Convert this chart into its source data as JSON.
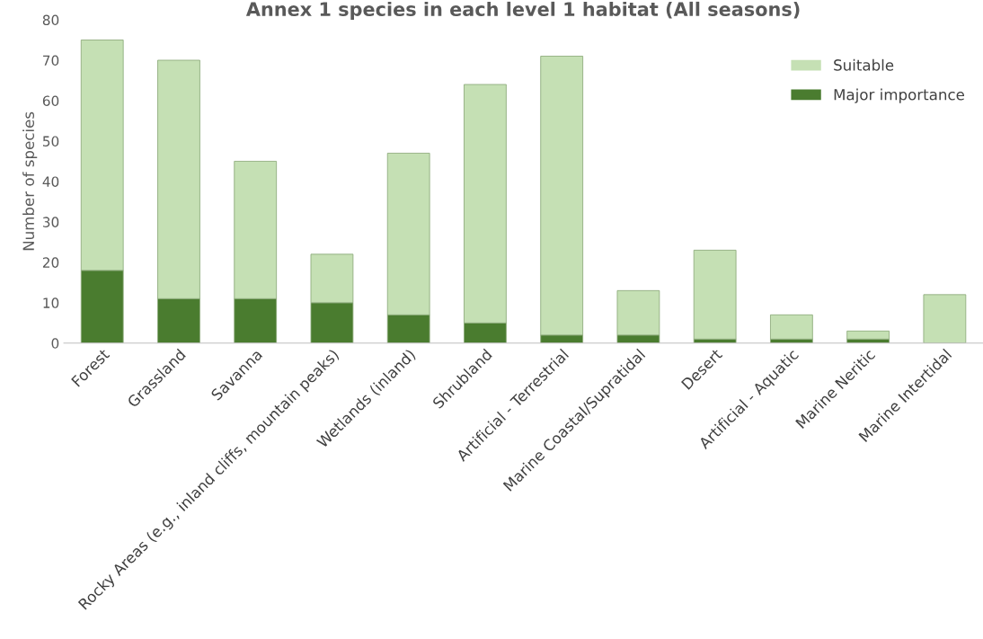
{
  "chart_data": {
    "type": "bar",
    "title": "Annex 1 species in each level 1 habitat (All seasons)",
    "ylabel": "Number of species",
    "categories": [
      "Forest",
      "Grassland",
      "Savanna",
      "Rocky Areas (e.g., inland cliffs, mountain peaks)",
      "Wetlands (inland)",
      "Shrubland",
      "Artificial - Terrestrial",
      "Marine Coastal/Supratidal",
      "Desert",
      "Artificial - Aquatic",
      "Marine Neritic",
      "Marine Intertidal"
    ],
    "stacked": true,
    "series": [
      {
        "name": "Major importance",
        "color": "#4a7c2f",
        "values": [
          18,
          11,
          11,
          10,
          7,
          5,
          2,
          2,
          1,
          1,
          1,
          0
        ]
      },
      {
        "name": "Suitable",
        "color": "#c5e0b4",
        "values": [
          57,
          59,
          34,
          12,
          40,
          59,
          69,
          11,
          22,
          6,
          2,
          12
        ]
      }
    ],
    "ylim": [
      0,
      80
    ],
    "yticks": [
      0,
      10,
      20,
      30,
      40,
      50,
      60,
      70,
      80
    ],
    "grid": false,
    "legend": "top right"
  }
}
